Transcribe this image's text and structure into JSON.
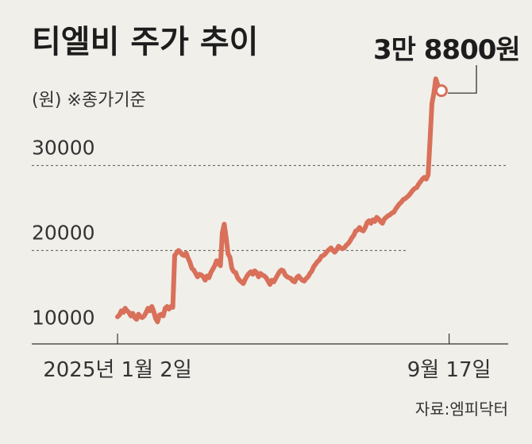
{
  "chart_data": {
    "type": "line",
    "title": "티엘비 주가 추이",
    "unit_note": "(원) ※종가기준",
    "callout": "3만 8800원",
    "source": "자료:엠피닥터",
    "ylim": [
      9000,
      40500
    ],
    "grid": "dashed at 20000 and 30000",
    "y_ticks": [
      {
        "value": 30000,
        "label": "30000"
      },
      {
        "value": 20000,
        "label": "20000"
      },
      {
        "value": 10000,
        "label": "10000"
      }
    ],
    "x_tick_labels": [
      {
        "index": 0,
        "label": "2025년 1월 2일"
      },
      {
        "index": 174,
        "label": "9월 17일"
      }
    ],
    "series": [
      {
        "color": "#d9705a",
        "values": [
          12200,
          12400,
          12900,
          12700,
          13200,
          12900,
          12700,
          12300,
          12600,
          12100,
          11900,
          12500,
          12200,
          12100,
          12300,
          12700,
          13200,
          12900,
          13400,
          12800,
          12000,
          11600,
          12400,
          12500,
          12300,
          13200,
          13400,
          13100,
          13400,
          13300,
          19400,
          19700,
          20000,
          19800,
          19500,
          19400,
          19700,
          19100,
          18600,
          17900,
          17700,
          17300,
          16900,
          17200,
          17100,
          16900,
          16500,
          17000,
          16800,
          17400,
          17800,
          18200,
          18800,
          18500,
          18200,
          22100,
          23100,
          21500,
          19600,
          19200,
          17900,
          17500,
          17400,
          16800,
          16500,
          16300,
          16100,
          16600,
          17000,
          17300,
          17500,
          17200,
          17600,
          17400,
          16900,
          17300,
          17100,
          17000,
          16800,
          16400,
          16000,
          16500,
          16300,
          16700,
          17100,
          17500,
          17700,
          17600,
          17100,
          16900,
          16800,
          16700,
          16400,
          16300,
          16800,
          17000,
          16700,
          16500,
          16400,
          16700,
          16900,
          17300,
          17600,
          18100,
          18400,
          18700,
          18900,
          19300,
          19400,
          19600,
          19900,
          20100,
          20300,
          20000,
          19800,
          20100,
          20500,
          20300,
          20200,
          20300,
          20600,
          20800,
          21100,
          21500,
          21800,
          22300,
          22400,
          22700,
          22400,
          22300,
          22700,
          23300,
          23500,
          23200,
          23600,
          23400,
          23900,
          23700,
          23400,
          23200,
          23700,
          23900,
          24100,
          24200,
          24400,
          24500,
          24900,
          25200,
          25500,
          25700,
          26000,
          26100,
          26300,
          26500,
          26800,
          27100,
          27300,
          27400,
          27800,
          28100,
          28400,
          28600,
          28400,
          28900,
          33000,
          37300,
          38500,
          40200,
          39500,
          38900,
          38800
        ]
      }
    ]
  }
}
